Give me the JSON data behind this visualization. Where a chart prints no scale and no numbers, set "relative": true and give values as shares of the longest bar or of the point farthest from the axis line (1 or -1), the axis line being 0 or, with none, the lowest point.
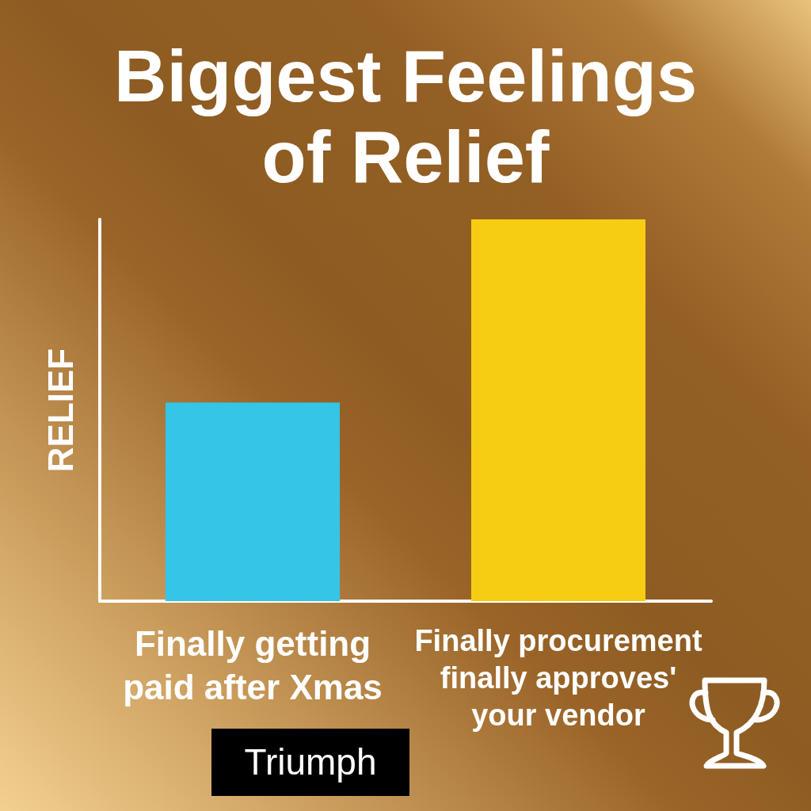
{
  "chart_data": {
    "type": "bar",
    "title": "Biggest Feelings of Relief",
    "ylabel": "RELIEF",
    "categories": [
      "Finally getting paid after Xmas",
      "Finally procurement finally approves' your vendor"
    ],
    "values": [
      0.52,
      1
    ],
    "colors": [
      "#35c5e6",
      "#f7cd14"
    ],
    "relative": true,
    "annotations": [
      "Triumph"
    ]
  }
}
